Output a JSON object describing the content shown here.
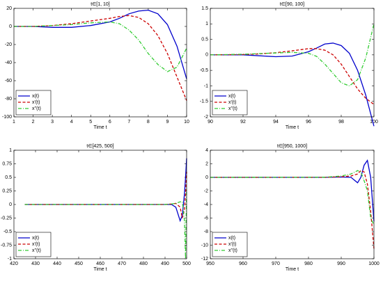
{
  "chart_data": [
    {
      "type": "line",
      "title": "t∈[1, 10]",
      "xlabel": "Time t",
      "legend": "lower left",
      "x": [
        1,
        2,
        3,
        4,
        5,
        6,
        6.5,
        7,
        7.5,
        8,
        8.5,
        9,
        9.5,
        10
      ],
      "series": [
        {
          "name": "x(t)",
          "color": "#0000cc",
          "style": "solid",
          "values": [
            0,
            0,
            -1,
            -1,
            1,
            5,
            9,
            14,
            17,
            18,
            14,
            2,
            -22,
            -58
          ]
        },
        {
          "name": "x'(t)",
          "color": "#cc0000",
          "style": "dashed",
          "values": [
            0,
            0,
            1,
            3,
            6,
            9,
            11,
            12,
            10,
            3,
            -10,
            -30,
            -56,
            -82
          ]
        },
        {
          "name": "x''(t)",
          "color": "#33cc33",
          "style": "dashdot",
          "values": [
            0,
            0,
            1,
            2,
            4,
            5,
            3,
            -4,
            -15,
            -30,
            -42,
            -50,
            -45,
            -24
          ]
        }
      ],
      "xlim": [
        1,
        10
      ],
      "xticks": [
        1,
        2,
        3,
        4,
        5,
        6,
        7,
        8,
        9,
        10
      ],
      "ylim": [
        -100,
        20
      ],
      "yticks": [
        -100,
        -80,
        -60,
        -40,
        -20,
        0,
        20
      ]
    },
    {
      "type": "line",
      "title": "t∈[90, 100]",
      "xlabel": "Time t",
      "legend": "lower left",
      "x": [
        90,
        92,
        93,
        94,
        95,
        96,
        96.5,
        97,
        97.5,
        98,
        98.5,
        99,
        99.5,
        100
      ],
      "series": [
        {
          "name": "x(t)",
          "color": "#0000cc",
          "style": "solid",
          "values": [
            0,
            0,
            -0.03,
            -0.06,
            -0.04,
            0.1,
            0.22,
            0.35,
            0.38,
            0.3,
            0.05,
            -0.5,
            -1.3,
            -2.3
          ]
        },
        {
          "name": "x'(t)",
          "color": "#cc0000",
          "style": "dashed",
          "values": [
            0,
            0.01,
            0.03,
            0.07,
            0.13,
            0.2,
            0.2,
            0.15,
            0,
            -0.3,
            -0.7,
            -1.1,
            -1.4,
            -1.6
          ]
        },
        {
          "name": "x''(t)",
          "color": "#33cc33",
          "style": "dashdot",
          "values": [
            0,
            0.02,
            0.04,
            0.06,
            0.08,
            0.05,
            -0.05,
            -0.3,
            -0.6,
            -0.9,
            -1,
            -0.8,
            -0.1,
            1
          ]
        }
      ],
      "xlim": [
        90,
        100
      ],
      "xticks": [
        90,
        92,
        94,
        96,
        98,
        100
      ],
      "ylim": [
        -2,
        1.5
      ],
      "yticks": [
        -2,
        -1.5,
        -1,
        -0.5,
        0,
        0.5,
        1,
        1.5
      ]
    },
    {
      "type": "line",
      "title": "t∈[425, 500]",
      "xlabel": "Time t",
      "legend": "lower left",
      "x": [
        425,
        490,
        493,
        495,
        497,
        498,
        499,
        499.5,
        500
      ],
      "series": [
        {
          "name": "x(t)",
          "color": "#0000cc",
          "style": "solid",
          "values": [
            0,
            0,
            0,
            -0.05,
            -0.3,
            -0.2,
            0.2,
            0.5,
            0.85
          ]
        },
        {
          "name": "x'(t)",
          "color": "#cc0000",
          "style": "dashed",
          "values": [
            0,
            0,
            0.01,
            0.02,
            -0.05,
            -0.25,
            -0.1,
            0.2,
            0.6
          ]
        },
        {
          "name": "x''(t)",
          "color": "#33cc33",
          "style": "dashdot",
          "values": [
            0,
            0,
            0.01,
            0.02,
            0.05,
            0.05,
            -0.3,
            -1,
            0.3
          ]
        }
      ],
      "xlim": [
        420,
        500
      ],
      "xticks": [
        420,
        430,
        440,
        450,
        460,
        470,
        480,
        490,
        500
      ],
      "ylim": [
        -1,
        1
      ],
      "yticks": [
        -1,
        -0.75,
        -0.5,
        -0.25,
        0,
        0.25,
        0.5,
        0.75,
        1
      ]
    },
    {
      "type": "line",
      "title": "t∈[950, 1000]",
      "xlabel": "Time t",
      "legend": "lower left",
      "x": [
        950,
        985,
        990,
        993,
        995,
        996,
        997,
        998,
        999,
        1000
      ],
      "series": [
        {
          "name": "x(t)",
          "color": "#0000cc",
          "style": "solid",
          "values": [
            0,
            0,
            0.05,
            0,
            -0.8,
            0,
            1.8,
            2.5,
            0,
            -6.5
          ]
        },
        {
          "name": "x'(t)",
          "color": "#cc0000",
          "style": "dashed",
          "values": [
            0,
            0,
            0.1,
            0.2,
            0.5,
            1,
            0.8,
            -1,
            -5,
            -10.5
          ]
        },
        {
          "name": "x''(t)",
          "color": "#33cc33",
          "style": "dashdot",
          "values": [
            0,
            0.02,
            0.2,
            0.5,
            1,
            0.8,
            -0.5,
            -2,
            -6,
            -7
          ]
        }
      ],
      "xlim": [
        950,
        1000
      ],
      "xticks": [
        950,
        960,
        970,
        980,
        990,
        1000
      ],
      "ylim": [
        -12,
        4
      ],
      "yticks": [
        -12,
        -10,
        -8,
        -6,
        -4,
        -2,
        0,
        2,
        4
      ]
    }
  ]
}
